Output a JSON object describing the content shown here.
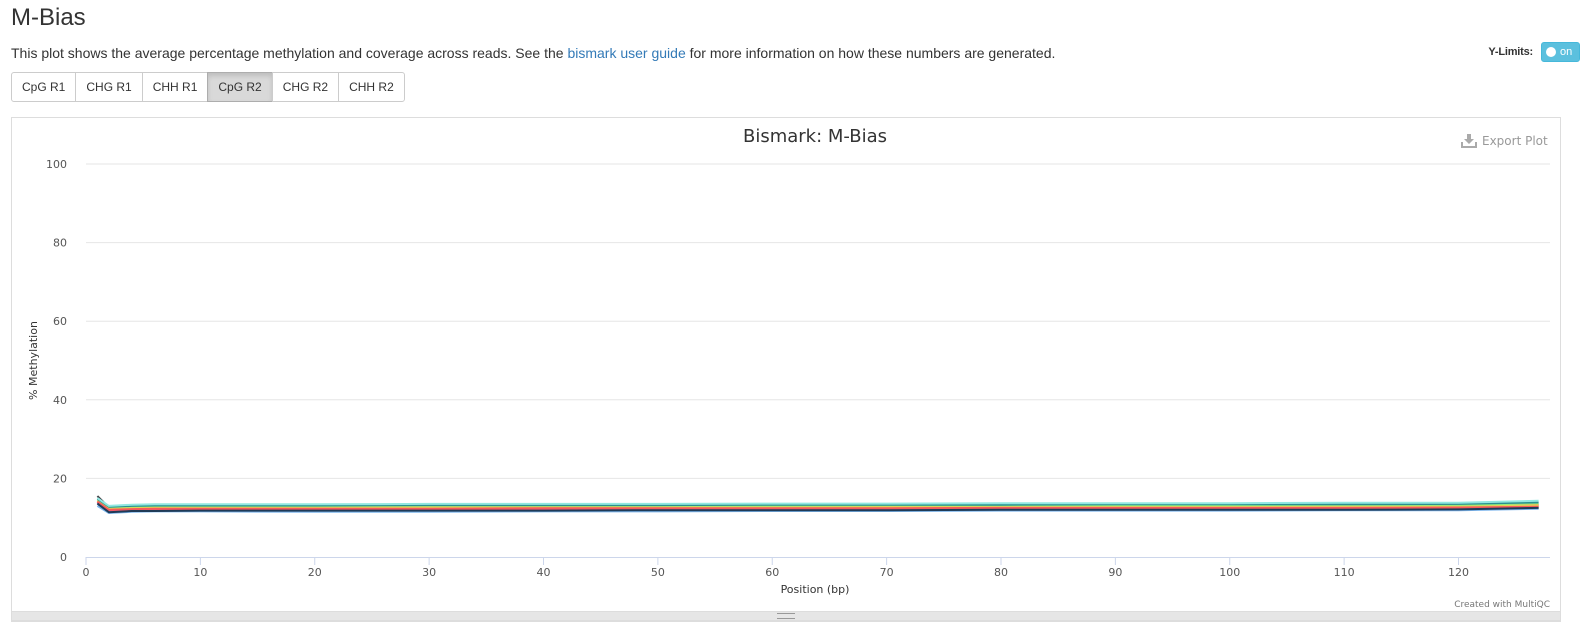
{
  "header": {
    "title": "M-Bias",
    "description_before": "This plot shows the average percentage methylation and coverage across reads. See the ",
    "link_text": "bismark user guide",
    "description_after": " for more information on how these numbers are generated."
  },
  "ylimits": {
    "label": "Y-Limits:",
    "toggle_text": "on"
  },
  "buttons": [
    {
      "label": "CpG R1",
      "active": false
    },
    {
      "label": "CHG R1",
      "active": false
    },
    {
      "label": "CHH R1",
      "active": false
    },
    {
      "label": "CpG R2",
      "active": true
    },
    {
      "label": "CHG R2",
      "active": false
    },
    {
      "label": "CHH R2",
      "active": false
    }
  ],
  "export": {
    "label": "Export Plot",
    "icon": "download-icon"
  },
  "credits": "Created with MultiQC",
  "chart_data": {
    "type": "line",
    "title": "Bismark: M-Bias",
    "xlabel": "Position (bp)",
    "ylabel": "% Methylation",
    "xlim": [
      0,
      128
    ],
    "ylim": [
      0,
      100
    ],
    "xticks": [
      0,
      10,
      20,
      30,
      40,
      50,
      60,
      70,
      80,
      90,
      100,
      110,
      120
    ],
    "yticks": [
      0,
      20,
      40,
      60,
      80,
      100
    ],
    "grid": true,
    "legend": "none",
    "x": [
      1,
      2,
      4,
      6,
      10,
      20,
      30,
      40,
      50,
      60,
      70,
      80,
      90,
      100,
      110,
      120,
      127
    ],
    "series": [
      {
        "color": "#7cb5ec",
        "values": [
          13.0,
          11.2,
          11.5,
          11.6,
          11.6,
          11.5,
          11.5,
          11.6,
          11.6,
          11.7,
          11.7,
          11.8,
          11.8,
          11.8,
          11.9,
          11.9,
          12.3
        ]
      },
      {
        "color": "#434348",
        "values": [
          15.5,
          12.6,
          13.0,
          12.9,
          12.9,
          12.9,
          12.9,
          12.9,
          13.0,
          13.0,
          13.0,
          13.1,
          13.1,
          13.1,
          13.2,
          13.2,
          13.3
        ]
      },
      {
        "color": "#90ed7d",
        "values": [
          14.5,
          12.4,
          12.6,
          12.7,
          12.8,
          12.8,
          12.8,
          12.9,
          12.9,
          12.9,
          13.0,
          13.0,
          13.0,
          13.0,
          13.1,
          13.1,
          13.6
        ]
      },
      {
        "color": "#f7a35c",
        "values": [
          14.2,
          12.1,
          12.3,
          12.3,
          12.4,
          12.4,
          12.4,
          12.4,
          12.5,
          12.5,
          12.5,
          12.6,
          12.6,
          12.6,
          12.6,
          12.7,
          13.2
        ]
      },
      {
        "color": "#8085e9",
        "values": [
          13.8,
          11.6,
          11.9,
          12.0,
          12.0,
          12.0,
          12.0,
          12.0,
          12.1,
          12.1,
          12.1,
          12.1,
          12.2,
          12.2,
          12.2,
          12.2,
          12.6
        ]
      },
      {
        "color": "#f15c80",
        "values": [
          14.0,
          11.9,
          12.1,
          12.1,
          12.2,
          12.2,
          12.2,
          12.2,
          12.3,
          12.3,
          12.3,
          12.3,
          12.4,
          12.4,
          12.4,
          12.4,
          12.9
        ]
      },
      {
        "color": "#e4d354",
        "values": [
          14.3,
          12.2,
          12.4,
          12.5,
          12.5,
          12.5,
          12.6,
          12.6,
          12.6,
          12.6,
          12.7,
          12.7,
          12.7,
          12.7,
          12.8,
          12.8,
          13.1
        ]
      },
      {
        "color": "#2b908f",
        "values": [
          14.8,
          12.8,
          13.0,
          13.1,
          13.1,
          13.1,
          13.2,
          13.2,
          13.2,
          13.3,
          13.3,
          13.3,
          13.4,
          13.4,
          13.4,
          13.5,
          13.9
        ]
      },
      {
        "color": "#f45b5b",
        "values": [
          14.1,
          12.0,
          12.2,
          12.3,
          12.3,
          12.3,
          12.3,
          12.4,
          12.4,
          12.4,
          12.4,
          12.5,
          12.5,
          12.5,
          12.5,
          12.6,
          12.8
        ]
      },
      {
        "color": "#91e8e1",
        "values": [
          15.0,
          13.0,
          13.3,
          13.4,
          13.4,
          13.4,
          13.5,
          13.5,
          13.5,
          13.6,
          13.6,
          13.7,
          13.7,
          13.7,
          13.8,
          13.8,
          14.3
        ]
      },
      {
        "color": "#1f3b57",
        "values": [
          13.6,
          11.4,
          11.7,
          11.7,
          11.8,
          11.8,
          11.8,
          11.8,
          11.9,
          11.9,
          11.9,
          12.0,
          12.0,
          12.0,
          12.0,
          12.1,
          12.5
        ]
      }
    ]
  }
}
